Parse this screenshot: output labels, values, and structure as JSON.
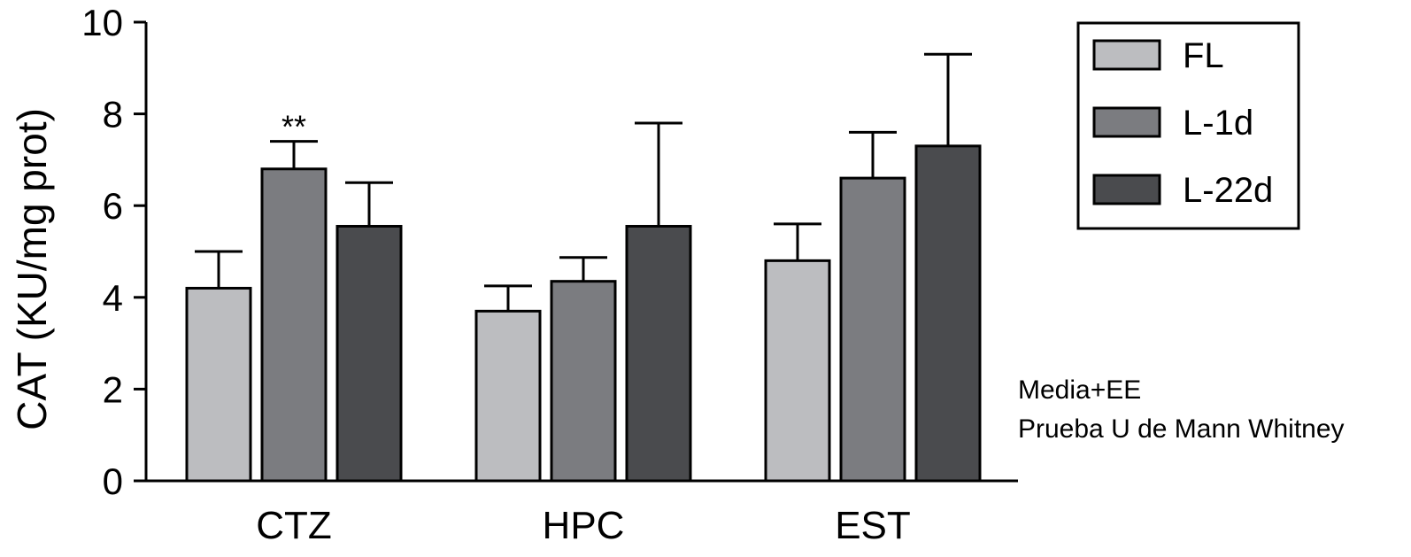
{
  "chart_data": {
    "type": "bar",
    "title": "",
    "ylabel": "CAT (KU/mg prot)",
    "xlabel": "",
    "ylim": [
      0,
      10
    ],
    "yticks": [
      0,
      2,
      4,
      6,
      8,
      10
    ],
    "categories": [
      "CTZ",
      "HPC",
      "EST"
    ],
    "series": [
      {
        "name": "FL",
        "color": "#bcbdc0",
        "values": [
          4.2,
          3.7,
          4.8
        ],
        "errors": [
          0.8,
          0.55,
          0.8
        ]
      },
      {
        "name": "L-1d",
        "color": "#7b7c80",
        "values": [
          6.8,
          4.35,
          6.6
        ],
        "errors": [
          0.6,
          0.52,
          1.0
        ]
      },
      {
        "name": "L-22d",
        "color": "#4a4b4e",
        "values": [
          5.55,
          5.55,
          7.3
        ],
        "errors": [
          0.95,
          2.25,
          2.0
        ]
      }
    ],
    "annotations": [
      {
        "text": "**",
        "category": 0,
        "series": 1
      }
    ],
    "legend_position": "top-right",
    "grid": false
  },
  "notes": [
    "Media+EE",
    "Prueba U de Mann Whitney"
  ]
}
